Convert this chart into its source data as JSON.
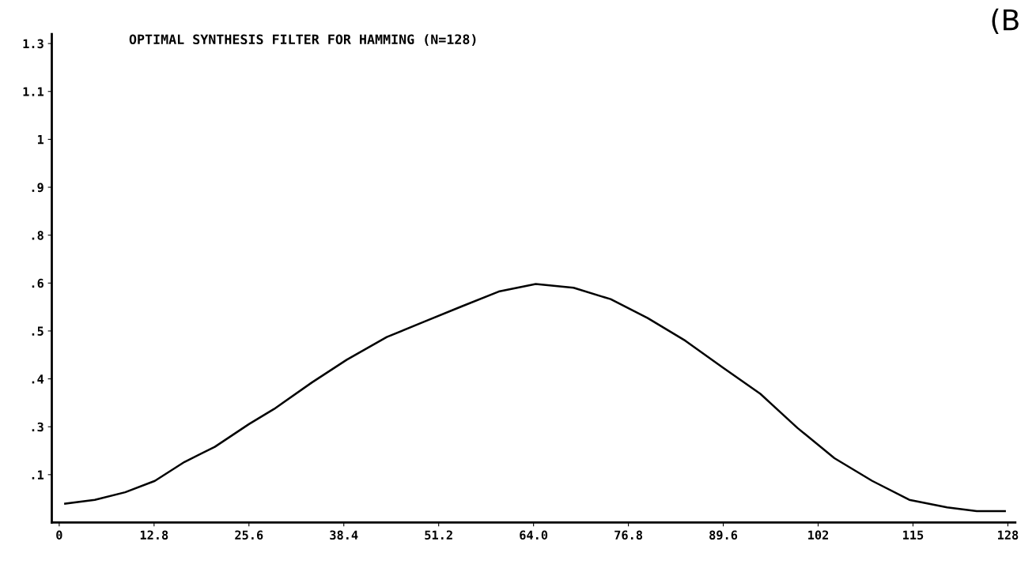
{
  "chart_data": {
    "type": "line",
    "title": "OPTIMAL SYNTHESIS FILTER FOR HAMMING (N=128)",
    "annotations": [
      "(B"
    ],
    "x": [
      0.8,
      4.8,
      8.9,
      12.9,
      16.9,
      21.0,
      25.6,
      29.0,
      34.1,
      38.8,
      44.2,
      49.2,
      54.2,
      59.3,
      64.3,
      69.4,
      74.4,
      79.4,
      84.5,
      89.5,
      94.6,
      99.6,
      104.6,
      109.7,
      114.7,
      119.8,
      123.8,
      127.6
    ],
    "series": [
      {
        "color": "#000000",
        "values": [
          0.05,
          0.06,
          0.08,
          0.11,
          0.16,
          0.2,
          0.26,
          0.3,
          0.37,
          0.43,
          0.49,
          0.53,
          0.57,
          0.61,
          0.63,
          0.62,
          0.59,
          0.54,
          0.48,
          0.41,
          0.34,
          0.25,
          0.17,
          0.11,
          0.06,
          0.04,
          0.03,
          0.03
        ]
      }
    ],
    "xlim": [
      -1,
      129
    ],
    "ylim": [
      0,
      1.29
    ],
    "xticks": [
      {
        "value": 0,
        "label": "0"
      },
      12.8,
      25.6,
      38.4,
      51.2,
      {
        "value": 64,
        "label": "64.0"
      },
      76.8,
      89.6,
      {
        "value": 102.4,
        "label": "102"
      },
      {
        "value": 115.2,
        "label": "115"
      },
      128
    ],
    "yticks": [
      {
        "value": 0.1265,
        "label": ".1"
      },
      {
        "value": 0.253,
        "label": ".3"
      },
      {
        "value": 0.3795,
        "label": ".4"
      },
      {
        "value": 0.506,
        "label": ".5"
      },
      {
        "value": 0.6325,
        "label": ".6"
      },
      {
        "value": 0.759,
        "label": ".8"
      },
      {
        "value": 0.8855,
        "label": ".9"
      },
      {
        "value": 1.012,
        "label": "1"
      },
      {
        "value": 1.1385,
        "label": "1.1"
      },
      {
        "value": 1.265,
        "label": "1.3"
      }
    ],
    "grid": false,
    "marker": "none",
    "line_style": "solid"
  }
}
